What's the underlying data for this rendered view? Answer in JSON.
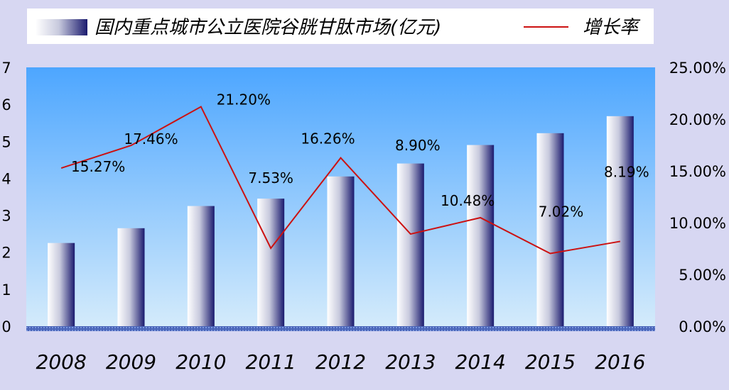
{
  "chart_data": {
    "type": "bar+line",
    "categories": [
      "2008",
      "2009",
      "2010",
      "2011",
      "2012",
      "2013",
      "2014",
      "2015",
      "2016"
    ],
    "series": [
      {
        "name": "国内重点城市公立医院谷胱甘肽市场(亿元)",
        "type": "bar",
        "axis": "left",
        "values": [
          2.25,
          2.65,
          3.25,
          3.45,
          4.05,
          4.4,
          4.9,
          5.22,
          5.68
        ]
      },
      {
        "name": "增长率",
        "type": "line",
        "axis": "right",
        "values": [
          15.27,
          17.46,
          21.2,
          7.53,
          16.26,
          8.9,
          10.48,
          7.02,
          8.19
        ],
        "labels": [
          "15.27%",
          "17.46%",
          "21.20%",
          "7.53%",
          "16.26%",
          "8.90%",
          "10.48%",
          "7.02%",
          "8.19%"
        ]
      }
    ],
    "y_left": {
      "min": 0,
      "max": 7,
      "ticks": [
        "0",
        "1",
        "2",
        "3",
        "4",
        "5",
        "6",
        "7"
      ]
    },
    "y_right": {
      "min": 0,
      "max": 25,
      "ticks": [
        "0.00%",
        "5.00%",
        "10.00%",
        "15.00%",
        "20.00%",
        "25.00%"
      ]
    },
    "legend_position": "top",
    "colors": {
      "bar_dark": "#1a1a6e",
      "bar_light": "#ffffff",
      "line": "#cc1111",
      "plot_top": "#4da6ff",
      "plot_bottom": "#d4ebfb",
      "page_bg": "#d7d7f2"
    }
  }
}
